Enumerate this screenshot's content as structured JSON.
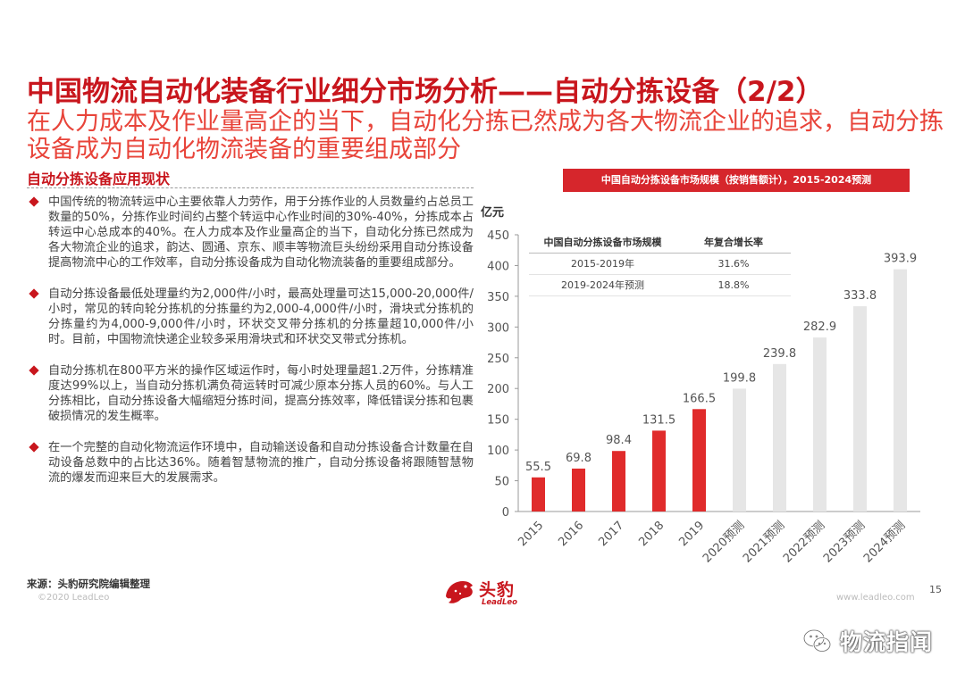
{
  "slide": {
    "title": "中国物流自动化装备行业细分市场分析——自动分拣设备（2/2）",
    "subtitle": "在人力成本及作业量高企的当下，自动化分拣已然成为各大物流企业的追求，自动分拣设备成为自动化物流装备的重要组成部分",
    "section_title": "自动分拣设备应用现状",
    "bullets": [
      "中国传统的物流转运中心主要依靠人力劳作，用于分拣作业的人员数量约占总员工数量的50%，分拣作业时间约占整个转运中心作业时间的30%-40%，分拣成本占转运中心总成本的40%。在人力成本及作业量高企的当下，自动化分拣已然成为各大物流企业的追求，韵达、圆通、京东、顺丰等物流巨头纷纷采用自动分拣设备提高物流中心的工作效率，自动分拣设备成为自动化物流装备的重要组成部分。",
      "自动分拣设备最低处理量约为2,000件/小时，最高处理量可达15,000-20,000件/小时，常见的转向轮分拣机的分拣量约为2,000-4,000件/小时，滑块式分拣机的分拣量约为4,000-9,000件/小时，环状交叉带分拣机的分拣量超10,000件/小时。目前，中国物流快递企业较多采用滑块式和环状交叉带式分拣机。",
      "自动分拣机在800平方米的操作区域运作时，每小时处理量超1.2万件，分拣精准度达99%以上，当自动分拣机满负荷运转时可减少原本分拣人员的60%。与人工分拣相比，自动分拣设备大幅缩短分拣时间，提高分拣效率，降低错误分拣和包裹破损情况的发生概率。",
      "在一个完整的自动化物流运作环境中，自动输送设备和自动分拣设备合计数量在自动设备总数中的占比达36%。随着智慧物流的推广，自动分拣设备将跟随智慧物流的爆发而迎来巨大的发展需求。"
    ],
    "source": "来源：头豹研究院编辑整理",
    "copyright": "©2020 LeadLeo",
    "site": "www.leadleo.com",
    "page_number": "15",
    "logo_cn": "头豹",
    "logo_en": "LeadLeo",
    "watermark": "物流指闻"
  },
  "chart_banner": "中国自动分拣设备市场规模（按销售额计），2015-2024预测",
  "cagr_table": {
    "headers": [
      "中国自动分拣设备市场规模",
      "年复合增长率"
    ],
    "rows": [
      [
        "2015-2019年",
        "31.6%"
      ],
      [
        "2019-2024年预测",
        "18.8%"
      ]
    ]
  },
  "colors": {
    "actual": "#e02b2b",
    "forecast": "#e6e6e6",
    "brand": "#c8161d"
  },
  "chart_data": {
    "type": "bar",
    "ylabel": "亿元",
    "ylim": [
      0,
      450
    ],
    "yticks": [
      0,
      50,
      100,
      150,
      200,
      250,
      300,
      350,
      400,
      450
    ],
    "categories": [
      "2015",
      "2016",
      "2017",
      "2018",
      "2019",
      "2020预测",
      "2021预测",
      "2022预测",
      "2023预测",
      "2024预测"
    ],
    "values": [
      55.5,
      69.8,
      98.4,
      131.5,
      166.5,
      199.8,
      239.8,
      282.9,
      333.8,
      393.9
    ],
    "labels": [
      "55.5",
      "69.8",
      "98.4",
      "131.5",
      "166.5",
      "199.8",
      "239.8",
      "282.9",
      "333.8",
      "393.9"
    ],
    "forecast": [
      false,
      false,
      false,
      false,
      false,
      true,
      true,
      true,
      true,
      true
    ],
    "grid": false
  }
}
